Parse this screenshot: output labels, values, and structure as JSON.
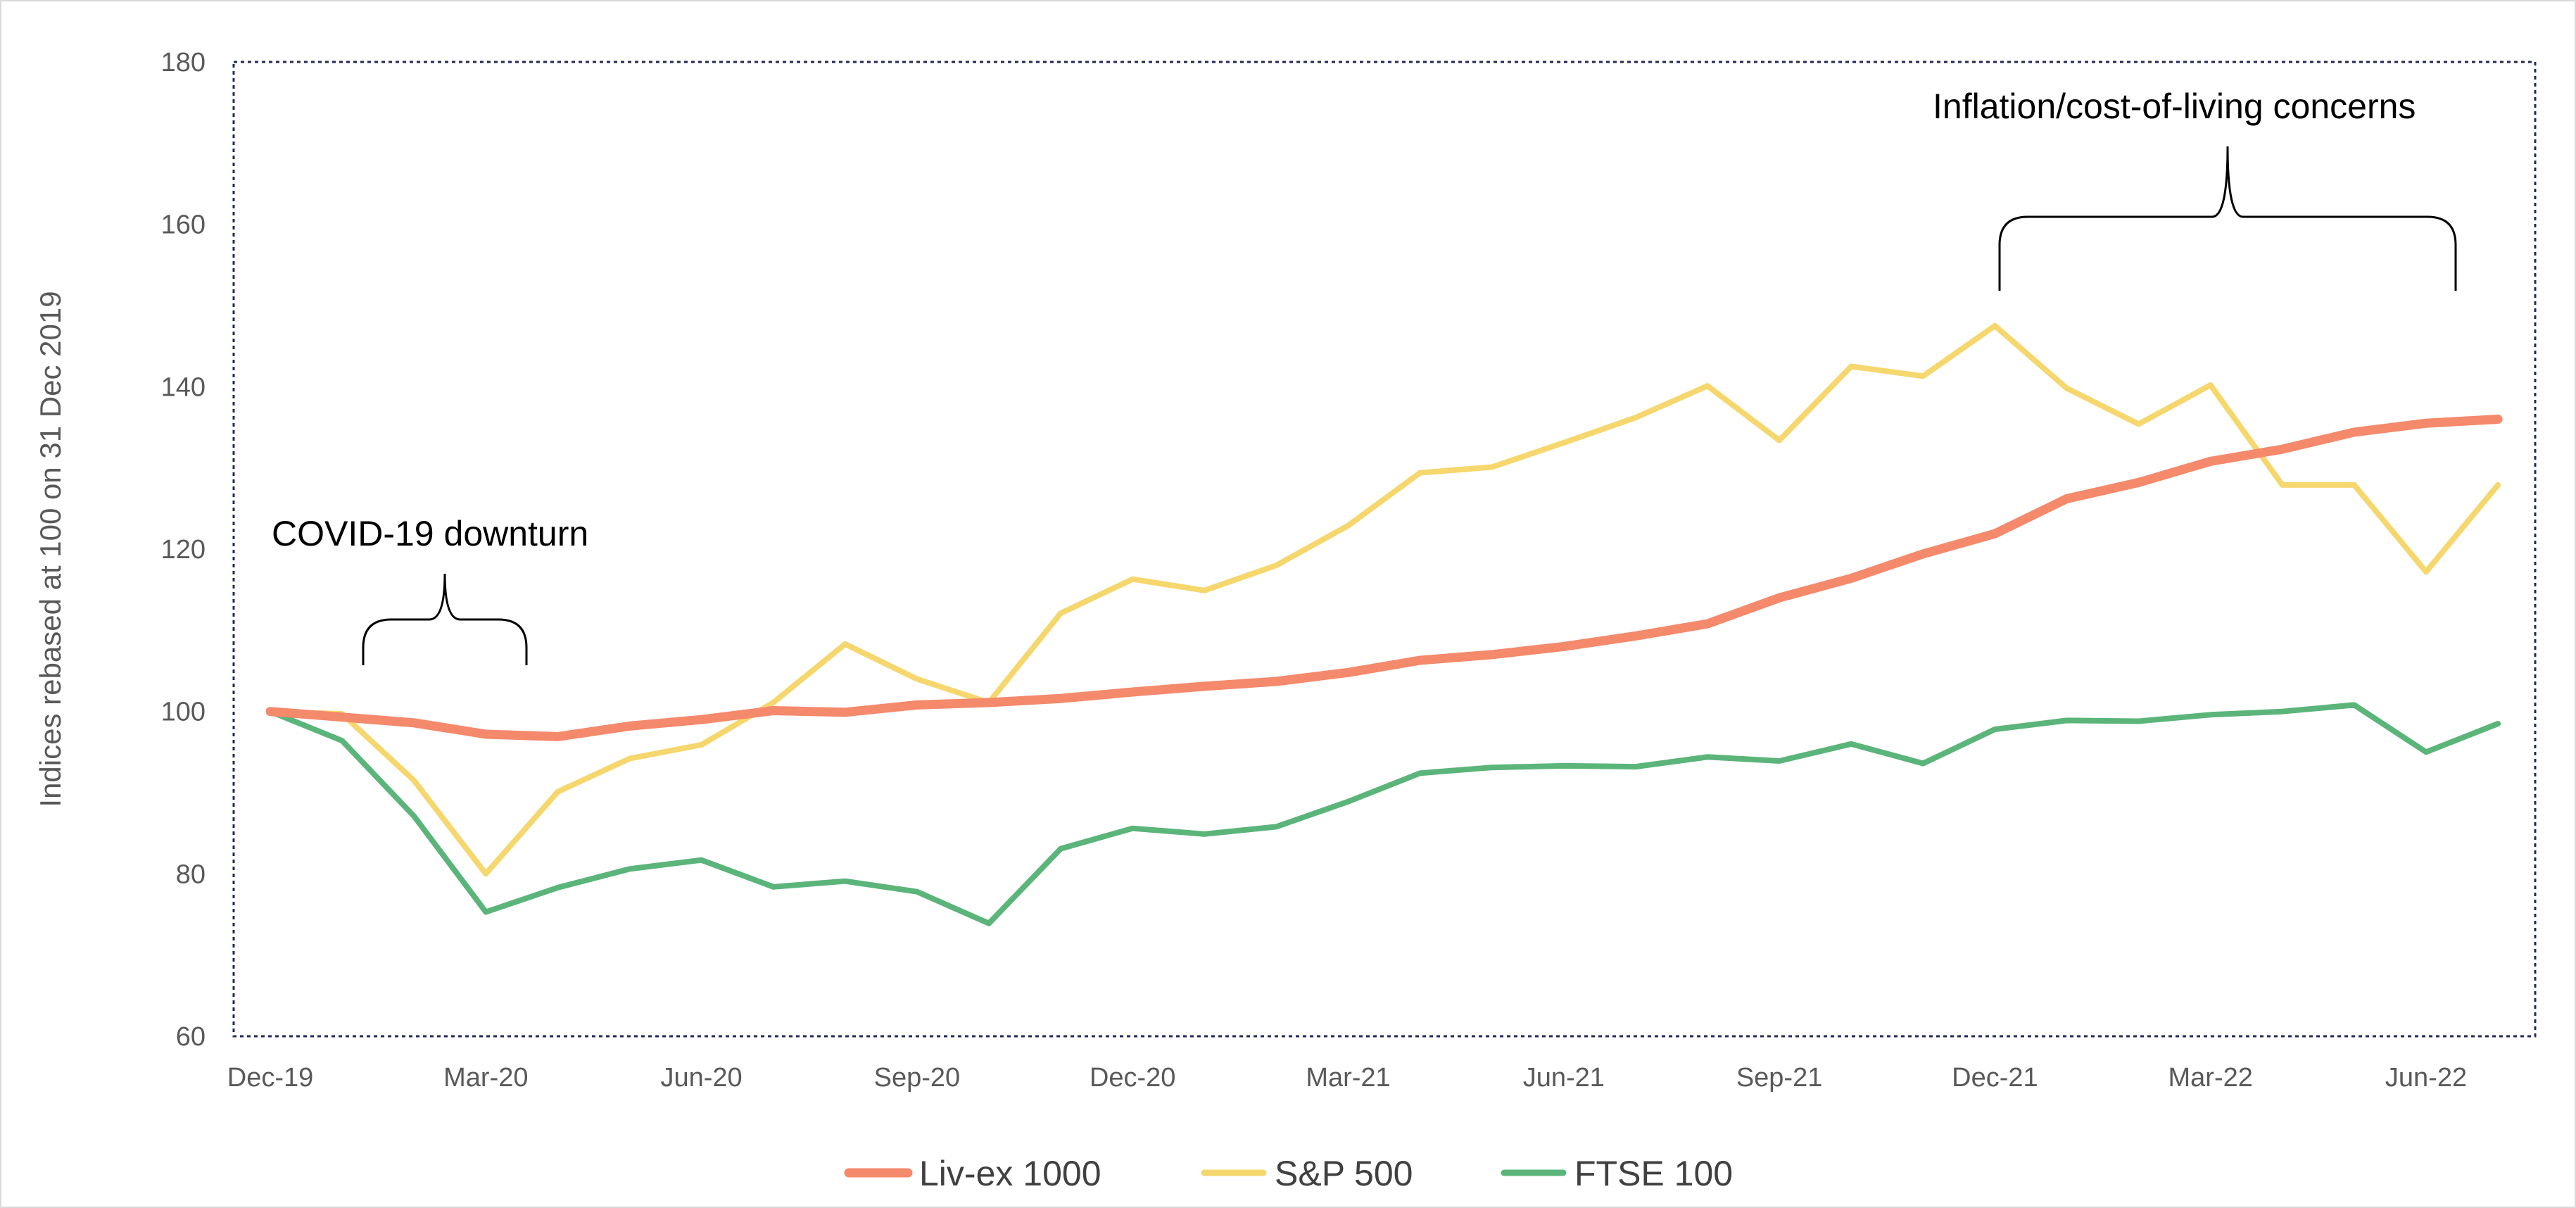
{
  "chart_data": {
    "type": "line",
    "ylabel": "Indices rebased at 100 on 31 Dec 2019",
    "xlabel": "",
    "ylim": [
      60,
      180
    ],
    "yticks": [
      60,
      80,
      100,
      120,
      140,
      160,
      180
    ],
    "x": [
      "Dec-19",
      "Jan-20",
      "Feb-20",
      "Mar-20",
      "Apr-20",
      "May-20",
      "Jun-20",
      "Jul-20",
      "Aug-20",
      "Sep-20",
      "Oct-20",
      "Nov-20",
      "Dec-20",
      "Jan-21",
      "Feb-21",
      "Mar-21",
      "Apr-21",
      "May-21",
      "Jun-21",
      "Jul-21",
      "Aug-21",
      "Sep-21",
      "Oct-21",
      "Nov-21",
      "Dec-21",
      "Jan-22",
      "Feb-22",
      "Mar-22",
      "Apr-22",
      "May-22",
      "Jun-22",
      "Jul-22"
    ],
    "xtick_labels": [
      "Dec-19",
      "Mar-20",
      "Jun-20",
      "Sep-20",
      "Dec-20",
      "Mar-21",
      "Jun-21",
      "Sep-21",
      "Dec-21",
      "Mar-22",
      "Jun-22"
    ],
    "series": [
      {
        "name": "Liv-ex 1000",
        "color": "#F4896B",
        "values": [
          100,
          99.3,
          98.6,
          97.2,
          96.9,
          98.2,
          99.0,
          100.1,
          99.9,
          100.8,
          101.1,
          101.6,
          102.4,
          103.1,
          103.7,
          104.8,
          106.3,
          107.0,
          108.0,
          109.3,
          110.8,
          114.0,
          116.4,
          119.4,
          121.9,
          126.2,
          128.2,
          130.8,
          132.3,
          134.4,
          135.5,
          136.0
        ]
      },
      {
        "name": "S&P 500",
        "color": "#F5D76E",
        "values": [
          100,
          99.7,
          91.5,
          80.0,
          90.1,
          94.2,
          95.9,
          101.1,
          108.3,
          104.0,
          101.1,
          112.1,
          116.3,
          114.9,
          118.0,
          122.9,
          129.4,
          130.1,
          133.1,
          136.2,
          140.1,
          133.4,
          142.5,
          141.3,
          147.5,
          139.8,
          135.4,
          140.2,
          127.9,
          127.9,
          117.2,
          127.9
        ]
      },
      {
        "name": "FTSE 100",
        "color": "#5BB57A",
        "values": [
          100,
          96.4,
          87.1,
          75.3,
          78.3,
          80.6,
          81.7,
          78.4,
          79.1,
          77.8,
          73.9,
          83.1,
          85.6,
          84.9,
          85.8,
          88.9,
          92.4,
          93.1,
          93.3,
          93.2,
          94.4,
          93.9,
          96.0,
          93.6,
          97.8,
          98.9,
          98.8,
          99.6,
          100.0,
          100.8,
          95.0,
          98.5
        ]
      }
    ],
    "annotations": [
      {
        "text": "COVID-19 downturn",
        "x_from": "Jan-20",
        "x_to": "Apr-20"
      },
      {
        "text": "Inflation/cost-of-living concerns",
        "x_from": "Dec-21",
        "x_to": "Jun-22"
      }
    ],
    "legend": "bottom",
    "grid": false
  }
}
